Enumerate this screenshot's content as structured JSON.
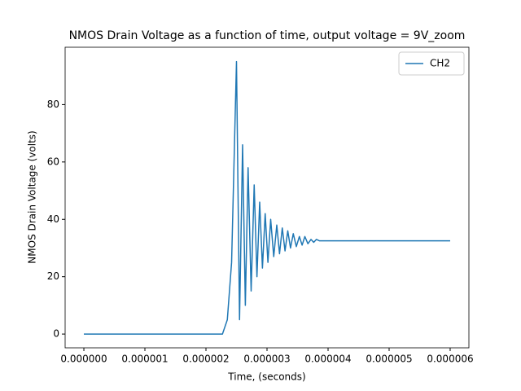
{
  "chart_data": {
    "type": "line",
    "title": "NMOS Drain Voltage as a function of time, output  voltage = 9V_zoom",
    "x_label": "Time, (seconds)",
    "y_label": "NMOS Drain Voltage (volts)",
    "x": [
      0,
      2.27e-06,
      2.35e-06,
      2.42e-06,
      2.5e-06,
      2.55e-06,
      2.6e-06,
      2.645e-06,
      2.69e-06,
      2.74e-06,
      2.79e-06,
      2.835e-06,
      2.88e-06,
      2.925e-06,
      2.97e-06,
      3.015e-06,
      3.06e-06,
      3.11e-06,
      3.16e-06,
      3.205e-06,
      3.25e-06,
      3.295e-06,
      3.34e-06,
      3.385e-06,
      3.43e-06,
      3.48e-06,
      3.53e-06,
      3.575e-06,
      3.62e-06,
      3.67e-06,
      3.72e-06,
      3.765e-06,
      3.81e-06,
      3.86e-06,
      6e-06
    ],
    "series": [
      {
        "name": "CH2",
        "color": "#1f77b4",
        "values": [
          0,
          0,
          5,
          25,
          95,
          5,
          66,
          10,
          58,
          15,
          52,
          20,
          46,
          23,
          42,
          25,
          40,
          27,
          38,
          28,
          37,
          29,
          36,
          30,
          35,
          30.5,
          34,
          31,
          34,
          31.5,
          33,
          32,
          33,
          32.5,
          32.5
        ]
      }
    ],
    "xlim": [
      -3.07e-07,
      6.307e-06
    ],
    "ylim": [
      -4.8,
      100
    ],
    "xticks": [
      {
        "value": 0,
        "label": "0.000000"
      },
      {
        "value": 1e-06,
        "label": "0.000001"
      },
      {
        "value": 2e-06,
        "label": "0.000002"
      },
      {
        "value": 3e-06,
        "label": "0.000003"
      },
      {
        "value": 4e-06,
        "label": "0.000004"
      },
      {
        "value": 5e-06,
        "label": "0.000005"
      },
      {
        "value": 6e-06,
        "label": "0.000006"
      }
    ],
    "yticks": [
      0,
      20,
      40,
      60,
      80
    ],
    "legend": "upper right"
  }
}
